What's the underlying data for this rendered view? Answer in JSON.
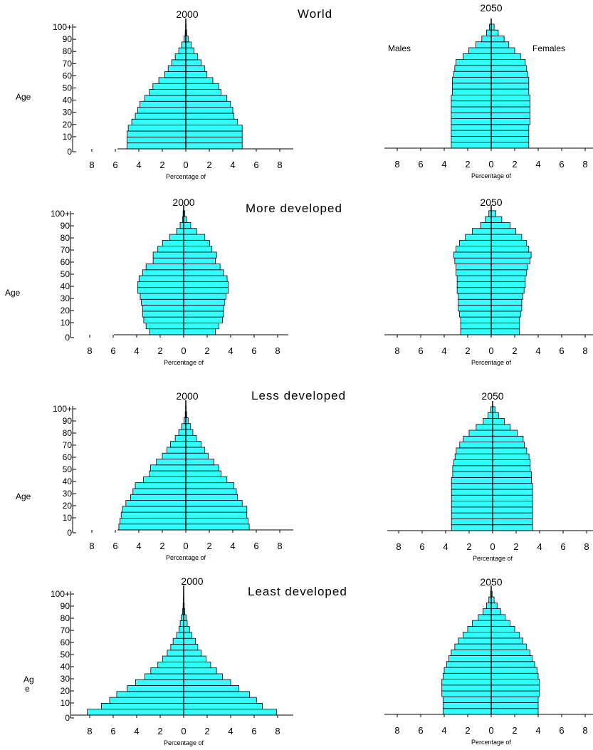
{
  "region_titles": [
    "World",
    "More developed",
    "Less developed",
    "Least developed"
  ],
  "sex_labels": {
    "left": "Males",
    "right": "Females"
  },
  "age_label_single": "Age",
  "age_label_split": [
    "Ag",
    "e"
  ],
  "xlabel": "Percentage of",
  "age_ticks": [
    "100+",
    "90",
    "80",
    "70",
    "60",
    "50",
    "40",
    "30",
    "20",
    "10",
    "0"
  ],
  "x_tick_labels": [
    "8",
    "6",
    "4",
    "2",
    "0",
    "2",
    "4",
    "6",
    "8"
  ],
  "colors": {
    "bar_fill": "#33ffff",
    "bar_stroke": "#000000"
  },
  "chart_data": [
    {
      "type": "bar",
      "subtype": "population-pyramid",
      "region": "World",
      "title": "2000",
      "xlim": [
        -8,
        8
      ],
      "age_groups": [
        "0-4",
        "5-9",
        "10-14",
        "15-19",
        "20-24",
        "25-29",
        "30-34",
        "35-39",
        "40-44",
        "45-49",
        "50-54",
        "55-59",
        "60-64",
        "65-69",
        "70-74",
        "75-79",
        "80-84",
        "85-89",
        "90-94",
        "95-99",
        "100+"
      ],
      "males": [
        5.0,
        5.0,
        5.0,
        4.9,
        4.6,
        4.3,
        4.1,
        3.9,
        3.5,
        3.1,
        2.8,
        2.3,
        1.8,
        1.5,
        1.2,
        0.9,
        0.6,
        0.35,
        0.15,
        0.05,
        0.02
      ],
      "females": [
        4.8,
        4.8,
        4.8,
        4.8,
        4.4,
        4.1,
        4.0,
        3.8,
        3.5,
        3.0,
        2.8,
        2.3,
        1.8,
        1.6,
        1.3,
        1.0,
        0.7,
        0.45,
        0.2,
        0.08,
        0.03
      ]
    },
    {
      "type": "bar",
      "subtype": "population-pyramid",
      "region": "World",
      "title": "2050",
      "xlim": [
        -8,
        8
      ],
      "age_groups": [
        "0-4",
        "5-9",
        "10-14",
        "15-19",
        "20-24",
        "25-29",
        "30-34",
        "35-39",
        "40-44",
        "45-49",
        "50-54",
        "55-59",
        "60-64",
        "65-69",
        "70-74",
        "75-79",
        "80-84",
        "85-89",
        "90-94",
        "95-99",
        "100+"
      ],
      "males": [
        3.4,
        3.4,
        3.4,
        3.4,
        3.4,
        3.4,
        3.4,
        3.4,
        3.4,
        3.3,
        3.3,
        3.3,
        3.2,
        3.1,
        3.0,
        2.4,
        1.9,
        1.3,
        0.8,
        0.4,
        0.15
      ],
      "females": [
        3.2,
        3.2,
        3.2,
        3.2,
        3.3,
        3.3,
        3.3,
        3.3,
        3.3,
        3.2,
        3.2,
        3.2,
        3.1,
        3.0,
        2.9,
        2.5,
        2.0,
        1.5,
        1.1,
        0.6,
        0.25
      ]
    },
    {
      "type": "bar",
      "subtype": "population-pyramid",
      "region": "More developed",
      "title": "2000",
      "xlim": [
        -8,
        8
      ],
      "age_groups": [
        "0-4",
        "5-9",
        "10-14",
        "15-19",
        "20-24",
        "25-29",
        "30-34",
        "35-39",
        "40-44",
        "45-49",
        "50-54",
        "55-59",
        "60-64",
        "65-69",
        "70-74",
        "75-79",
        "80-84",
        "85-89",
        "90-94",
        "95-99",
        "100+"
      ],
      "males": [
        2.9,
        3.2,
        3.4,
        3.5,
        3.5,
        3.6,
        3.7,
        3.9,
        3.9,
        3.8,
        3.5,
        3.2,
        2.6,
        2.6,
        2.2,
        1.8,
        1.2,
        0.6,
        0.3,
        0.1,
        0.05
      ],
      "females": [
        2.7,
        3.0,
        3.3,
        3.4,
        3.4,
        3.5,
        3.6,
        3.8,
        3.8,
        3.7,
        3.4,
        3.1,
        2.7,
        2.8,
        2.4,
        2.2,
        1.8,
        1.1,
        0.6,
        0.25,
        0.1
      ]
    },
    {
      "type": "bar",
      "subtype": "population-pyramid",
      "region": "More developed",
      "title": "2050",
      "xlim": [
        -8,
        8
      ],
      "age_groups": [
        "0-4",
        "5-9",
        "10-14",
        "15-19",
        "20-24",
        "25-29",
        "30-34",
        "35-39",
        "40-44",
        "45-49",
        "50-54",
        "55-59",
        "60-64",
        "65-69",
        "70-74",
        "75-79",
        "80-84",
        "85-89",
        "90-94",
        "95-99",
        "100+"
      ],
      "males": [
        2.6,
        2.6,
        2.6,
        2.7,
        2.8,
        2.8,
        2.8,
        2.9,
        2.9,
        2.9,
        3.0,
        3.0,
        3.1,
        3.2,
        3.0,
        2.7,
        2.2,
        1.6,
        0.9,
        0.5,
        0.2
      ],
      "females": [
        2.4,
        2.4,
        2.4,
        2.5,
        2.6,
        2.6,
        2.7,
        2.8,
        2.9,
        2.9,
        3.0,
        3.1,
        3.3,
        3.4,
        3.2,
        3.0,
        2.6,
        2.1,
        1.6,
        0.9,
        0.4
      ]
    },
    {
      "type": "bar",
      "subtype": "population-pyramid",
      "region": "Less developed",
      "title": "2000",
      "xlim": [
        -8,
        8
      ],
      "age_groups": [
        "0-4",
        "5-9",
        "10-14",
        "15-19",
        "20-24",
        "25-29",
        "30-34",
        "35-39",
        "40-44",
        "45-49",
        "50-54",
        "55-59",
        "60-64",
        "65-69",
        "70-74",
        "75-79",
        "80-84",
        "85-89",
        "90-94",
        "95-99",
        "100+"
      ],
      "males": [
        5.7,
        5.6,
        5.5,
        5.4,
        5.1,
        4.7,
        4.5,
        4.3,
        3.6,
        3.1,
        3.0,
        2.5,
        2.0,
        1.6,
        1.3,
        0.9,
        0.6,
        0.35,
        0.15,
        0.05,
        0.02
      ],
      "females": [
        5.4,
        5.3,
        5.2,
        5.2,
        4.8,
        4.4,
        4.3,
        4.1,
        3.5,
        3.0,
        2.8,
        2.4,
        1.9,
        1.6,
        1.3,
        0.9,
        0.6,
        0.4,
        0.2,
        0.08,
        0.03
      ]
    },
    {
      "type": "bar",
      "subtype": "population-pyramid",
      "region": "Less developed",
      "title": "2050",
      "xlim": [
        -8,
        8
      ],
      "age_groups": [
        "0-4",
        "5-9",
        "10-14",
        "15-19",
        "20-24",
        "25-29",
        "30-34",
        "35-39",
        "40-44",
        "45-49",
        "50-54",
        "55-59",
        "60-64",
        "65-69",
        "70-74",
        "75-79",
        "80-84",
        "85-89",
        "90-94",
        "95-99",
        "100+"
      ],
      "males": [
        3.5,
        3.5,
        3.5,
        3.5,
        3.5,
        3.5,
        3.5,
        3.5,
        3.5,
        3.4,
        3.4,
        3.3,
        3.2,
        3.1,
        2.8,
        2.5,
        2.0,
        1.4,
        0.8,
        0.4,
        0.15
      ],
      "females": [
        3.4,
        3.4,
        3.4,
        3.4,
        3.4,
        3.4,
        3.4,
        3.4,
        3.3,
        3.3,
        3.2,
        3.2,
        3.1,
        2.9,
        2.7,
        2.6,
        2.1,
        1.5,
        1.0,
        0.5,
        0.2
      ]
    },
    {
      "type": "bar",
      "subtype": "population-pyramid",
      "region": "Least developed",
      "title": "2000",
      "xlim": [
        -8,
        8
      ],
      "age_groups": [
        "0-4",
        "5-9",
        "10-14",
        "15-19",
        "20-24",
        "25-29",
        "30-34",
        "35-39",
        "40-44",
        "45-49",
        "50-54",
        "55-59",
        "60-64",
        "65-69",
        "70-74",
        "75-79",
        "80-84",
        "85-89",
        "90-94",
        "95-99",
        "100+"
      ],
      "males": [
        8.2,
        7.0,
        6.3,
        5.7,
        4.8,
        4.1,
        3.3,
        2.8,
        2.2,
        1.8,
        1.4,
        1.1,
        0.9,
        0.6,
        0.4,
        0.3,
        0.2,
        0.1,
        0.05,
        0.02,
        0.01
      ],
      "females": [
        7.9,
        6.7,
        6.2,
        5.6,
        4.7,
        4.0,
        3.3,
        2.8,
        2.3,
        1.9,
        1.5,
        1.2,
        1.0,
        0.7,
        0.5,
        0.3,
        0.2,
        0.1,
        0.05,
        0.02,
        0.01
      ]
    },
    {
      "type": "bar",
      "subtype": "population-pyramid",
      "region": "Least developed",
      "title": "2050",
      "xlim": [
        -8,
        8
      ],
      "age_groups": [
        "0-4",
        "5-9",
        "10-14",
        "15-19",
        "20-24",
        "25-29",
        "30-34",
        "35-39",
        "40-44",
        "45-49",
        "50-54",
        "55-59",
        "60-64",
        "65-69",
        "70-74",
        "75-79",
        "80-84",
        "85-89",
        "90-94",
        "95-99",
        "100+"
      ],
      "males": [
        4.1,
        4.1,
        4.1,
        4.2,
        4.2,
        4.2,
        4.1,
        4.0,
        3.8,
        3.6,
        3.4,
        3.1,
        2.8,
        2.4,
        2.0,
        1.6,
        1.1,
        0.7,
        0.4,
        0.2,
        0.05
      ],
      "females": [
        4.0,
        4.0,
        4.0,
        4.1,
        4.1,
        4.1,
        4.0,
        3.9,
        3.7,
        3.5,
        3.3,
        3.0,
        2.7,
        2.4,
        2.0,
        1.6,
        1.2,
        0.8,
        0.5,
        0.25,
        0.08
      ]
    }
  ]
}
